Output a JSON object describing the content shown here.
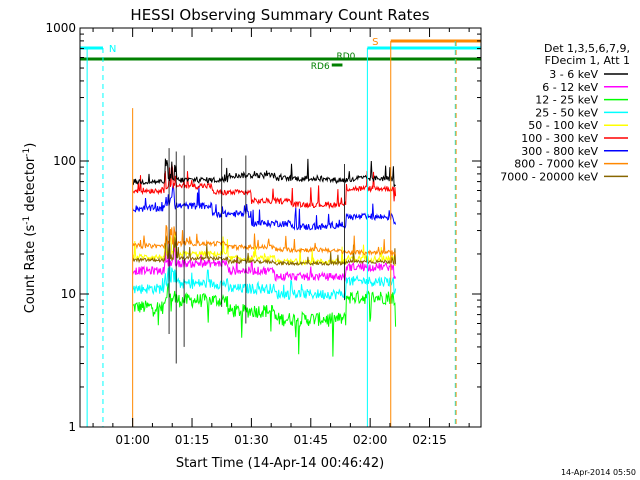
{
  "chart_data": {
    "type": "line",
    "title": "HESSI Observing Summary Count Rates",
    "xlabel": "Start Time (14-Apr-14 00:46:42)",
    "ylabel_main": "Count Rate (s",
    "ylabel_sup1": "-1",
    "ylabel_mid": " detector",
    "ylabel_sup2": "-1",
    "ylabel_end": ")",
    "yscale": "log",
    "ylim": [
      1,
      1000
    ],
    "y_ticks": [
      {
        "value": 1,
        "label": "1"
      },
      {
        "value": 10,
        "label": "10"
      },
      {
        "value": 100,
        "label": "100"
      },
      {
        "value": 1000,
        "label": "1000"
      }
    ],
    "xlim_min": [
      46.7,
      148
    ],
    "x_ticks": [
      {
        "value": 60,
        "label": "01:00"
      },
      {
        "value": 75,
        "label": "01:15"
      },
      {
        "value": 90,
        "label": "01:30"
      },
      {
        "value": 105,
        "label": "01:45"
      },
      {
        "value": 120,
        "label": "02:00"
      },
      {
        "value": 135,
        "label": "02:15"
      }
    ],
    "legend_title": [
      "Det 1,3,5,6,7,9,",
      "FDecim 1, Att 1"
    ],
    "series": [
      {
        "name": "3 - 6 keV",
        "color": "#000000",
        "levels": [
          [
            60,
            70
          ],
          [
            68,
            72
          ],
          [
            84,
            78
          ],
          [
            96,
            74
          ],
          [
            108,
            72
          ],
          [
            116,
            74
          ],
          [
            126,
            64
          ]
        ]
      },
      {
        "name": "6 - 12 keV",
        "color": "#ff00ff",
        "levels": [
          [
            60,
            15
          ],
          [
            68,
            17
          ],
          [
            84,
            15
          ],
          [
            96,
            13.5
          ],
          [
            110,
            13.5
          ],
          [
            114,
            16
          ],
          [
            126,
            14
          ]
        ]
      },
      {
        "name": "12 - 25 keV",
        "color": "#00ff00",
        "levels": [
          [
            60,
            8
          ],
          [
            68,
            9
          ],
          [
            84,
            7.5
          ],
          [
            96,
            6.5
          ],
          [
            110,
            6.5
          ],
          [
            114,
            9.5
          ],
          [
            126,
            8
          ]
        ]
      },
      {
        "name": "25 - 50 keV",
        "color": "#00ffff",
        "levels": [
          [
            60,
            11
          ],
          [
            68,
            12
          ],
          [
            84,
            11
          ],
          [
            96,
            10
          ],
          [
            110,
            10
          ],
          [
            114,
            12.5
          ],
          [
            126,
            10.5
          ]
        ]
      },
      {
        "name": "50 - 100 keV",
        "color": "#ffff00",
        "levels": [
          [
            60,
            19
          ],
          [
            68,
            20
          ],
          [
            84,
            18.5
          ],
          [
            96,
            17.5
          ],
          [
            110,
            17.5
          ],
          [
            114,
            18.5
          ],
          [
            126,
            17
          ]
        ]
      },
      {
        "name": "100 - 300 keV",
        "color": "#ff0000",
        "levels": [
          [
            60,
            60
          ],
          [
            68,
            65
          ],
          [
            80,
            58
          ],
          [
            90,
            50
          ],
          [
            100,
            47
          ],
          [
            110,
            47
          ],
          [
            114,
            62
          ],
          [
            126,
            52
          ]
        ]
      },
      {
        "name": "300 - 800 keV",
        "color": "#0000ff",
        "levels": [
          [
            60,
            44
          ],
          [
            68,
            46
          ],
          [
            80,
            40
          ],
          [
            90,
            34
          ],
          [
            100,
            32
          ],
          [
            110,
            33
          ],
          [
            114,
            38
          ],
          [
            126,
            34
          ]
        ]
      },
      {
        "name": "800 - 7000 keV",
        "color": "#ff8800",
        "levels": [
          [
            60,
            23
          ],
          [
            68,
            24
          ],
          [
            84,
            22.5
          ],
          [
            96,
            21.5
          ],
          [
            110,
            21
          ],
          [
            114,
            20.5
          ],
          [
            126,
            20
          ]
        ]
      },
      {
        "name": "7000 - 20000 keV",
        "color": "#886600",
        "levels": [
          [
            60,
            18
          ],
          [
            68,
            18.5
          ],
          [
            84,
            17.5
          ],
          [
            96,
            17
          ],
          [
            110,
            17
          ],
          [
            114,
            17.5
          ],
          [
            126,
            17
          ]
        ]
      }
    ],
    "annotations": {
      "night_label": "N",
      "saa_label": "S",
      "rd0_label": "RD0",
      "rd6_label": "RD6"
    },
    "timestamp": "14-Apr-2014 05:50"
  }
}
